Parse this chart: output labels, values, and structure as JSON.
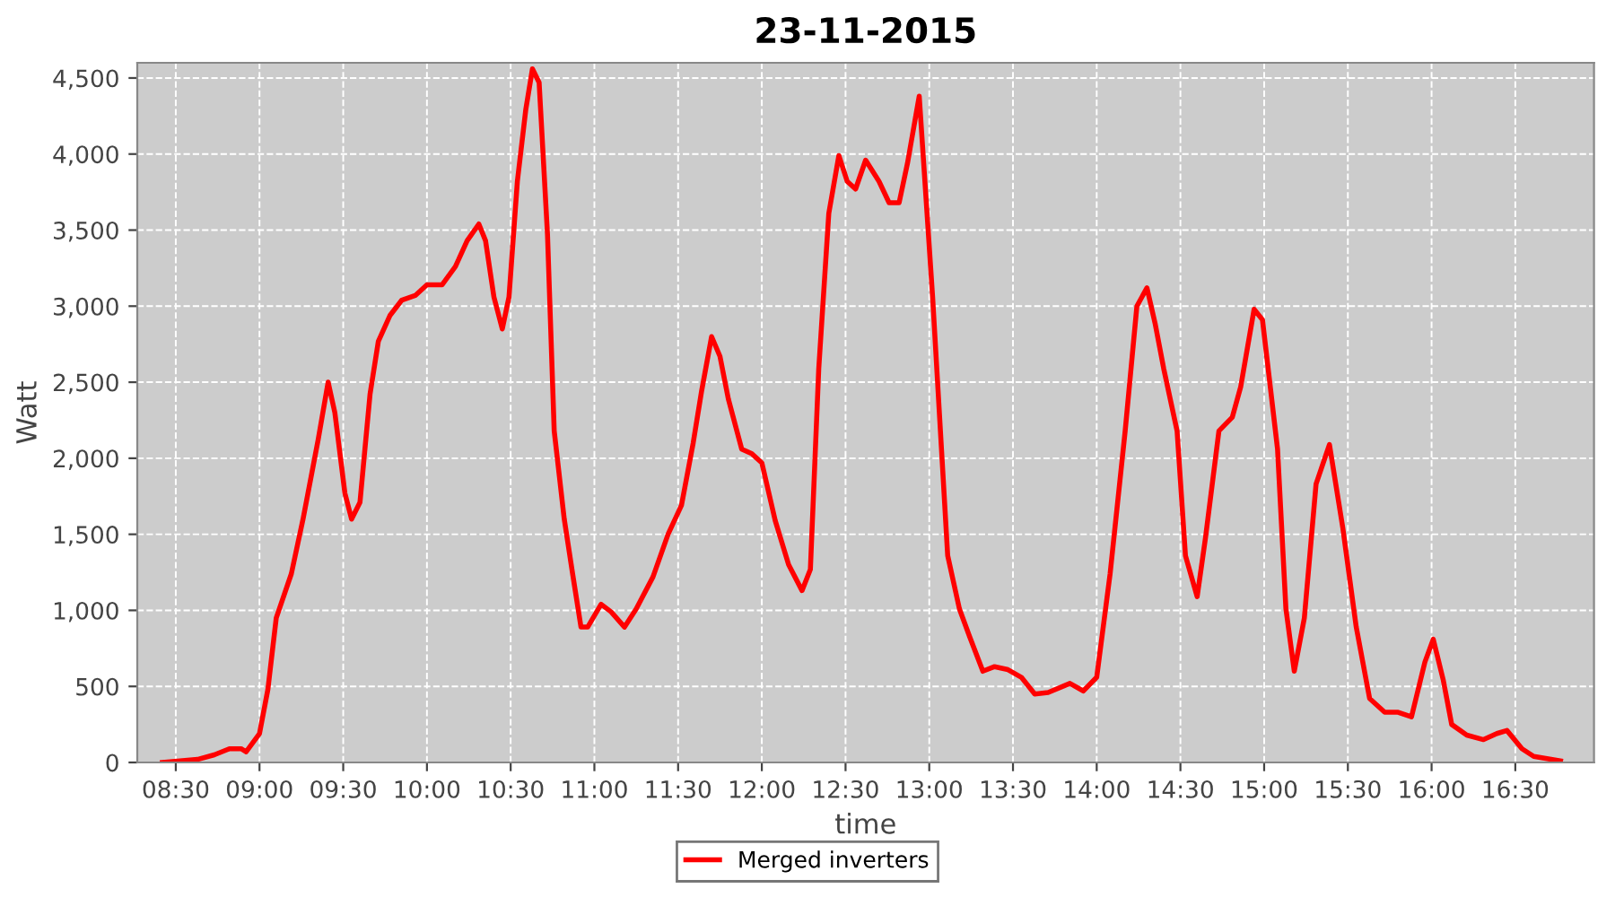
{
  "chart_data": {
    "type": "line",
    "title": "23-11-2015",
    "xlabel": "time",
    "ylabel": "Watt",
    "xlim": [
      8.27,
      16.97
    ],
    "ylim": [
      0,
      4600
    ],
    "xticks": [
      {
        "value": 8.5,
        "label": "08:30"
      },
      {
        "value": 9,
        "label": "09:00"
      },
      {
        "value": 9.5,
        "label": "09:30"
      },
      {
        "value": 10,
        "label": "10:00"
      },
      {
        "value": 10.5,
        "label": "10:30"
      },
      {
        "value": 11,
        "label": "11:00"
      },
      {
        "value": 11.5,
        "label": "11:30"
      },
      {
        "value": 12,
        "label": "12:00"
      },
      {
        "value": 12.5,
        "label": "12:30"
      },
      {
        "value": 13,
        "label": "13:00"
      },
      {
        "value": 13.5,
        "label": "13:30"
      },
      {
        "value": 14,
        "label": "14:00"
      },
      {
        "value": 14.5,
        "label": "14:30"
      },
      {
        "value": 15,
        "label": "15:00"
      },
      {
        "value": 15.5,
        "label": "15:30"
      },
      {
        "value": 16,
        "label": "16:00"
      },
      {
        "value": 16.5,
        "label": "16:30"
      }
    ],
    "yticks": [
      0,
      500,
      {
        "value": 1000,
        "label": "1,000"
      },
      {
        "value": 1500,
        "label": "1,500"
      },
      {
        "value": 2000,
        "label": "2,000"
      },
      {
        "value": 2500,
        "label": "2,500"
      },
      {
        "value": 3000,
        "label": "3,000"
      },
      {
        "value": 3500,
        "label": "3,500"
      },
      {
        "value": 4000,
        "label": "4,000"
      },
      {
        "value": 4500,
        "label": "4,500"
      }
    ],
    "grid": true,
    "legend": "bottom",
    "line_style": "dashed",
    "series": [
      {
        "name": "Merged inverters",
        "color": "#ff0000",
        "line_style": "solid",
        "x": [
          8.42,
          8.63,
          8.73,
          8.82,
          8.89,
          8.92,
          9.0,
          9.05,
          9.1,
          9.19,
          9.26,
          9.35,
          9.41,
          9.45,
          9.51,
          9.55,
          9.6,
          9.66,
          9.71,
          9.78,
          9.85,
          9.93,
          10.0,
          10.09,
          10.17,
          10.24,
          10.31,
          10.35,
          10.4,
          10.45,
          10.49,
          10.54,
          10.59,
          10.63,
          10.67,
          10.72,
          10.76,
          10.82,
          10.87,
          10.92,
          10.96,
          11.04,
          11.1,
          11.18,
          11.25,
          11.35,
          11.44,
          11.52,
          11.59,
          11.64,
          11.7,
          11.75,
          11.8,
          11.88,
          11.94,
          12.0,
          12.08,
          12.16,
          12.24,
          12.29,
          12.34,
          12.4,
          12.46,
          12.51,
          12.56,
          12.62,
          12.7,
          12.76,
          12.82,
          12.87,
          12.94,
          13.02,
          13.11,
          13.18,
          13.24,
          13.32,
          13.39,
          13.47,
          13.55,
          13.63,
          13.71,
          13.84,
          13.92,
          14.0,
          14.08,
          14.17,
          14.24,
          14.3,
          14.35,
          14.4,
          14.48,
          14.53,
          14.6,
          14.65,
          14.73,
          14.81,
          14.86,
          14.94,
          14.99,
          15.08,
          15.13,
          15.18,
          15.24,
          15.31,
          15.39,
          15.47,
          15.55,
          15.63,
          15.72,
          15.8,
          15.88,
          15.96,
          16.01,
          16.07,
          16.12,
          16.21,
          16.31,
          16.39,
          16.45,
          16.54,
          16.61,
          16.77
        ],
        "values": [
          0,
          20,
          50,
          90,
          90,
          70,
          190,
          480,
          950,
          1240,
          1600,
          2120,
          2500,
          2300,
          1770,
          1600,
          1710,
          2420,
          2770,
          2940,
          3040,
          3070,
          3140,
          3140,
          3260,
          3430,
          3540,
          3430,
          3060,
          2850,
          3060,
          3820,
          4290,
          4560,
          4470,
          3470,
          2180,
          1600,
          1240,
          890,
          890,
          1040,
          990,
          890,
          1010,
          1220,
          1500,
          1690,
          2100,
          2440,
          2800,
          2670,
          2390,
          2060,
          2030,
          1970,
          1590,
          1300,
          1130,
          1270,
          2590,
          3610,
          3990,
          3820,
          3770,
          3960,
          3820,
          3680,
          3680,
          3940,
          4380,
          3060,
          1360,
          1010,
          830,
          600,
          630,
          610,
          560,
          450,
          460,
          520,
          470,
          560,
          1240,
          2180,
          3000,
          3120,
          2880,
          2590,
          2180,
          1360,
          1090,
          1480,
          2180,
          2270,
          2470,
          2980,
          2910,
          2060,
          1010,
          600,
          950,
          1830,
          2090,
          1540,
          890,
          420,
          330,
          330,
          300,
          660,
          810,
          540,
          250,
          180,
          150,
          190,
          210,
          90,
          40,
          10
        ]
      }
    ]
  }
}
